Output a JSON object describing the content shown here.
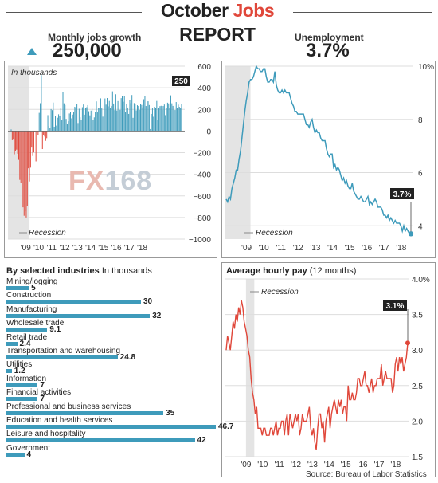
{
  "header": {
    "title_a": "October",
    "title_b": "Jobs",
    "subtitle": "REPORT"
  },
  "stats": {
    "jobs_label": "Monthly jobs growth",
    "jobs_value": "250,000",
    "unemp_label": "Unemployment",
    "unemp_value": "3.7%"
  },
  "watermark": "FX168",
  "source": "Source: Bureau of Labor Statistics",
  "colors": {
    "red": "#e0473a",
    "blue": "#3e9bbb",
    "grey_band": "#e4e4e4"
  },
  "chart_data": [
    {
      "type": "bar",
      "name": "jobs",
      "note": "In thousands",
      "recession_label": "Recession",
      "callout": "250",
      "x_ticks": [
        "'09",
        "'10",
        "'11",
        "'12",
        "'13",
        "'14",
        "'15",
        "'16",
        "'17",
        "'18"
      ],
      "y_ticks": [
        600,
        400,
        200,
        0,
        -200,
        -400,
        -600,
        -800,
        -1000
      ],
      "ylim": [
        -1000,
        600
      ],
      "start": "2008-01",
      "values": [
        15,
        -85,
        -80,
        -215,
        -182,
        -172,
        -210,
        -267,
        -452,
        -480,
        -727,
        -706,
        -784,
        -743,
        -800,
        -695,
        -345,
        -467,
        -339,
        -153,
        -231,
        -198,
        -11,
        -281,
        17,
        -41,
        168,
        257,
        517,
        -167,
        -40,
        -51,
        -91,
        -66,
        147,
        47,
        29,
        203,
        193,
        263,
        40,
        136,
        50,
        123,
        155,
        142,
        209,
        101,
        363,
        256,
        240,
        112,
        67,
        90,
        162,
        179,
        117,
        152,
        177,
        224,
        212,
        248,
        74,
        206,
        127,
        100,
        220,
        245,
        151,
        213,
        220,
        239,
        183,
        145,
        189,
        207,
        101,
        126,
        175,
        274,
        172,
        212,
        212,
        302,
        209,
        133,
        237,
        301,
        244,
        305,
        228,
        278,
        216,
        230,
        367,
        254,
        193,
        340,
        190,
        277,
        207,
        196,
        304,
        326,
        271,
        327,
        175,
        249,
        217,
        158,
        289,
        258,
        333,
        122,
        258,
        247,
        191,
        238,
        231,
        196,
        252,
        241,
        219,
        294,
        323,
        231,
        276,
        275,
        240,
        18,
        158,
        214,
        132,
        223,
        212,
        278,
        104,
        213,
        230,
        233,
        194,
        231,
        245,
        147,
        215,
        262,
        255,
        213,
        330,
        256,
        232,
        255,
        194,
        268,
        211,
        244,
        223,
        212,
        250
      ]
    },
    {
      "type": "line",
      "name": "unemployment",
      "recession_label": "Recession",
      "callout": "3.7%",
      "x_ticks": [
        "'09",
        "'10",
        "'11",
        "'12",
        "'13",
        "'14",
        "'15",
        "'16",
        "'17",
        "'18"
      ],
      "y_ticks": [
        "10%",
        "8",
        "6",
        "4"
      ],
      "ylim": [
        3.5,
        10
      ],
      "start": "2008-01",
      "values": [
        5.0,
        4.9,
        5.1,
        5.0,
        5.4,
        5.6,
        5.8,
        6.1,
        6.1,
        6.5,
        6.8,
        7.3,
        7.8,
        8.3,
        8.7,
        9.0,
        9.4,
        9.5,
        9.5,
        9.6,
        9.8,
        10.0,
        9.9,
        9.9,
        9.8,
        9.8,
        9.9,
        9.9,
        9.6,
        9.4,
        9.4,
        9.5,
        9.5,
        9.4,
        9.8,
        9.3,
        9.1,
        9.0,
        9.0,
        9.1,
        9.0,
        9.1,
        9.0,
        9.0,
        9.0,
        8.8,
        8.6,
        8.5,
        8.3,
        8.3,
        8.2,
        8.2,
        8.2,
        8.2,
        8.2,
        8.0,
        7.8,
        7.8,
        7.7,
        7.9,
        8.0,
        7.7,
        7.5,
        7.6,
        7.5,
        7.5,
        7.3,
        7.2,
        7.2,
        7.2,
        6.9,
        6.7,
        6.6,
        6.7,
        6.7,
        6.2,
        6.3,
        6.1,
        6.2,
        6.1,
        5.9,
        5.7,
        5.8,
        5.6,
        5.7,
        5.5,
        5.4,
        5.4,
        5.6,
        5.3,
        5.2,
        5.1,
        5.0,
        5.0,
        5.1,
        5.0,
        4.9,
        4.9,
        5.0,
        5.1,
        4.8,
        4.9,
        4.8,
        4.9,
        5.0,
        4.9,
        4.7,
        4.7,
        4.7,
        4.6,
        4.4,
        4.4,
        4.3,
        4.4,
        4.2,
        4.3,
        4.2,
        4.1,
        4.2,
        4.1,
        4.1,
        4.1,
        4.0,
        3.8,
        4.0,
        3.8,
        3.9,
        3.8,
        3.7,
        3.7
      ],
      "last_x_label": "'18"
    },
    {
      "type": "bar",
      "orientation": "horizontal",
      "name": "industries",
      "title": "By selected industries",
      "unit": "In thousands",
      "categories": [
        "Mining/logging",
        "Construction",
        "Manufacturing",
        "Wholesale trade",
        "Retail trade",
        "Transportation and warehousing",
        "Utilities",
        "Information",
        "Financial activities",
        "Professional and business services",
        "Education and health services",
        "Leisure and hospitality",
        "Government"
      ],
      "values": [
        5,
        30,
        32,
        9.1,
        2.4,
        24.8,
        1.2,
        7,
        7,
        35,
        46.7,
        42,
        4
      ],
      "value_labels": [
        "5",
        "30",
        "32",
        "9.1",
        "2.4",
        "24.8",
        "1.2",
        "7",
        "7",
        "35",
        "46.7",
        "42",
        "4"
      ]
    },
    {
      "type": "line",
      "name": "hourly_pay",
      "title": "Average hourly pay",
      "subtitle": "(12 months)",
      "recession_label": "Recession",
      "callout": "3.1%",
      "x_ticks": [
        "'09",
        "'10",
        "'11",
        "'12",
        "'13",
        "'14",
        "'15",
        "'16",
        "'17",
        "'18"
      ],
      "y_ticks": [
        "4.0%",
        "3.5",
        "3.0",
        "2.5",
        "2.0",
        "1.5"
      ],
      "ylim": [
        1.5,
        4.0
      ],
      "start": "2008-01",
      "values": [
        3.0,
        3.2,
        3.1,
        3.0,
        3.2,
        3.4,
        3.3,
        3.5,
        3.4,
        3.6,
        3.5,
        3.7,
        3.6,
        3.4,
        3.3,
        3.2,
        3.0,
        2.9,
        2.6,
        2.4,
        2.3,
        2.1,
        2.2,
        1.9,
        1.9,
        1.9,
        1.8,
        1.9,
        1.9,
        1.8,
        1.8,
        1.8,
        1.9,
        1.9,
        1.8,
        1.9,
        2.0,
        1.8,
        1.9,
        1.9,
        2.0,
        2.0,
        1.8,
        2.0,
        2.1,
        1.8,
        2.1,
        2.0,
        1.9,
        2.0,
        2.1,
        2.0,
        2.1,
        1.8,
        1.9,
        2.1,
        2.0,
        2.0,
        2.0,
        2.1,
        2.2,
        1.9,
        1.8,
        1.9,
        1.7,
        1.6,
        1.9,
        2.1,
        2.1,
        1.9,
        2.0,
        1.7,
        2.0,
        2.1,
        2.2,
        1.9,
        2.1,
        2.2,
        2.3,
        2.2,
        2.1,
        2.3,
        2.2,
        2.3,
        2.1,
        2.2,
        2.2,
        2.0,
        2.5,
        2.3,
        2.3,
        2.4,
        2.3,
        2.3,
        2.4,
        2.6,
        2.6,
        2.5,
        2.5,
        2.6,
        2.7,
        2.5,
        2.5,
        2.4,
        2.5,
        2.6,
        2.4,
        2.5,
        2.5,
        2.6,
        2.6,
        2.6,
        2.8,
        2.5,
        2.6,
        2.7,
        2.6,
        2.6,
        2.6,
        2.6,
        2.4,
        2.5,
        2.8,
        2.9,
        2.7,
        2.9,
        2.8,
        2.9,
        2.7,
        2.8,
        2.9,
        3.1
      ]
    }
  ]
}
